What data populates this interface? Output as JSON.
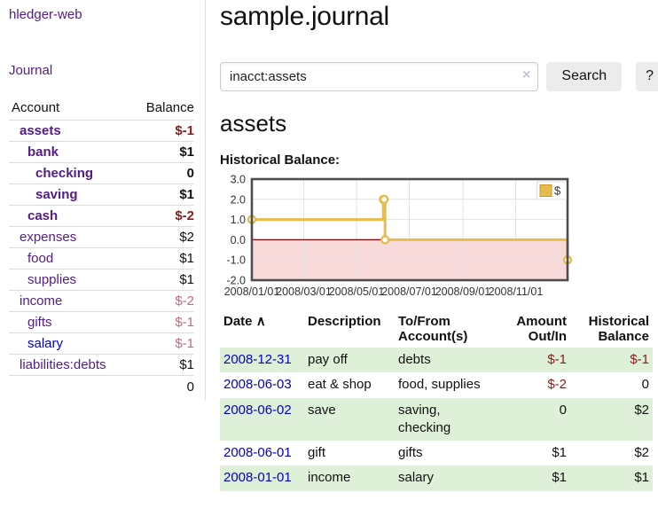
{
  "app": {
    "name": "hledger-web"
  },
  "sidebar": {
    "journal_link": "Journal",
    "account_header": "Account",
    "balance_header": "Balance",
    "accounts": [
      {
        "name": "assets",
        "balance": "$-1",
        "depth": 1
      },
      {
        "name": "bank",
        "balance": "$1",
        "depth": 2
      },
      {
        "name": "checking",
        "balance": "0",
        "depth": 3
      },
      {
        "name": "saving",
        "balance": "$1",
        "depth": 3
      },
      {
        "name": "cash",
        "balance": "$-2",
        "depth": 2
      },
      {
        "name": "expenses",
        "balance": "$2",
        "depth": 1
      },
      {
        "name": "food",
        "balance": "$1",
        "depth": 2
      },
      {
        "name": "supplies",
        "balance": "$1",
        "depth": 2
      },
      {
        "name": "income",
        "balance": "$-2",
        "depth": 1
      },
      {
        "name": "gifts",
        "balance": "$-1",
        "depth": 2
      },
      {
        "name": "salary",
        "balance": "$-1",
        "depth": 2
      },
      {
        "name": "liabilities:debts",
        "balance": "$1",
        "depth": 1
      }
    ],
    "total": "0"
  },
  "main": {
    "title": "sample.journal",
    "search": {
      "value": "inacct:assets",
      "clear_icon": "×",
      "search_button": "Search",
      "help_button": "?"
    },
    "account_heading": "assets",
    "chart_title": "Historical Balance:",
    "register": {
      "headers": {
        "date": "Date",
        "sort_icon": "∧",
        "description": "Description",
        "account": "To/From Account(s)",
        "amount": "Amount Out/In",
        "balance": "Historical Balance"
      },
      "rows": [
        {
          "date": "2008-12-31",
          "description": "pay off",
          "accounts": "debts",
          "amount": "$-1",
          "balance": "$-1"
        },
        {
          "date": "2008-06-03",
          "description": "eat & shop",
          "accounts": "food, supplies",
          "amount": "$-2",
          "balance": "0"
        },
        {
          "date": "2008-06-02",
          "description": "save",
          "accounts": "saving, checking",
          "amount": "0",
          "balance": "$2"
        },
        {
          "date": "2008-06-01",
          "description": "gift",
          "accounts": "gifts",
          "amount": "$1",
          "balance": "$2"
        },
        {
          "date": "2008-01-01",
          "description": "income",
          "accounts": "salary",
          "amount": "$1",
          "balance": "$1"
        }
      ]
    }
  },
  "chart_data": {
    "type": "line",
    "step": true,
    "title": "Historical Balance",
    "series": [
      {
        "name": "$",
        "points": [
          [
            "2008-01-01",
            1
          ],
          [
            "2008-06-01",
            2
          ],
          [
            "2008-06-02",
            2
          ],
          [
            "2008-06-03",
            0
          ],
          [
            "2008-12-31",
            -1
          ]
        ]
      }
    ],
    "x_range": [
      "2008-01-01",
      "2008-12-31"
    ],
    "x_ticks": [
      "2008/01/01",
      "2008/03/01",
      "2008/05/01",
      "2008/07/01",
      "2008/09/01",
      "2008/11/01"
    ],
    "y_ticks": [
      3.0,
      2.0,
      1.0,
      0.0,
      -1.0,
      -2.0
    ],
    "ylim": [
      -2,
      3
    ],
    "legend": {
      "label": "$",
      "position": "top-right"
    },
    "grid": true,
    "colors": {
      "line": "#e6bc4d",
      "marker_fill": "#ffffff",
      "legend_border": "#c79b2a",
      "negative_region": "#f9dada",
      "zero_line": "#8b0000",
      "grid": "#e2e2e2",
      "border": "#4d4d4d",
      "tick_text": "#333333"
    }
  }
}
